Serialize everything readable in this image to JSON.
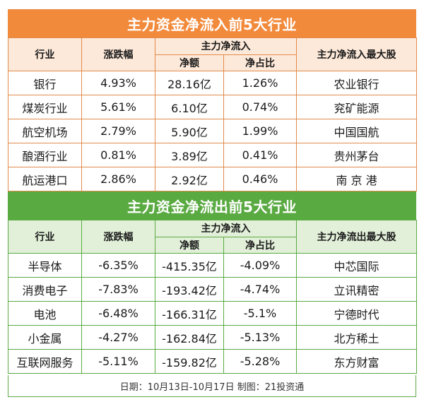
{
  "inflow": {
    "title": "主力资金净流入前5大行业",
    "headers": {
      "industry": "行业",
      "change": "涨跌幅",
      "group": "主力净流入",
      "amount": "净额",
      "ratio": "净占比",
      "top_stock": "主力净流入最大股"
    },
    "rows": [
      {
        "industry": "银行",
        "change": "4.93%",
        "amount": "28.16亿",
        "ratio": "1.26%",
        "stock": "农业银行"
      },
      {
        "industry": "煤炭行业",
        "change": "5.61%",
        "amount": "6.10亿",
        "ratio": "0.74%",
        "stock": "兖矿能源"
      },
      {
        "industry": "航空机场",
        "change": "2.79%",
        "amount": "5.90亿",
        "ratio": "1.99%",
        "stock": "中国国航"
      },
      {
        "industry": "酿酒行业",
        "change": "0.81%",
        "amount": "3.89亿",
        "ratio": "0.41%",
        "stock": "贵州茅台"
      },
      {
        "industry": "航运港口",
        "change": "2.86%",
        "amount": "2.92亿",
        "ratio": "0.46%",
        "stock": "南 京 港"
      }
    ]
  },
  "outflow": {
    "title": "主力资金净流出前5大行业",
    "headers": {
      "industry": "行业",
      "change": "涨跌幅",
      "group": "主力净流入",
      "amount": "净额",
      "ratio": "净占比",
      "top_stock": "主力净流出最大股"
    },
    "rows": [
      {
        "industry": "半导体",
        "change": "-6.35%",
        "amount": "-415.35亿",
        "ratio": "-4.09%",
        "stock": "中芯国际"
      },
      {
        "industry": "消费电子",
        "change": "-7.83%",
        "amount": "-193.42亿",
        "ratio": "-4.74%",
        "stock": "立讯精密"
      },
      {
        "industry": "电池",
        "change": "-6.48%",
        "amount": "-166.31亿",
        "ratio": "-5.1%",
        "stock": "宁德时代"
      },
      {
        "industry": "小金属",
        "change": "-4.27%",
        "amount": "-162.84亿",
        "ratio": "-5.13%",
        "stock": "北方稀土"
      },
      {
        "industry": "互联网服务",
        "change": "-5.11%",
        "amount": "-159.82亿",
        "ratio": "-5.28%",
        "stock": "东方财富"
      }
    ]
  },
  "footer": "日期：10月13日-10月17日 制图：21投资通",
  "colors": {
    "inflow_accent": "#f28a3c",
    "outflow_accent": "#5aaa42"
  }
}
